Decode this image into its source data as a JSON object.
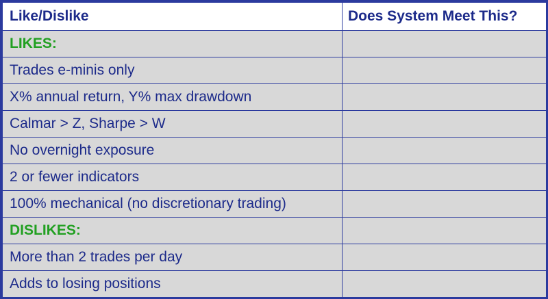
{
  "header": {
    "col1": "Like/Dislike",
    "col2": "Does System Meet This?"
  },
  "rows": [
    {
      "type": "section",
      "label": "LIKES:",
      "value": ""
    },
    {
      "type": "item",
      "label": "Trades e-minis only",
      "value": ""
    },
    {
      "type": "item",
      "label": "X% annual return, Y% max drawdown",
      "value": ""
    },
    {
      "type": "item",
      "label": "Calmar > Z, Sharpe > W",
      "value": ""
    },
    {
      "type": "item",
      "label": "No overnight exposure",
      "value": ""
    },
    {
      "type": "item",
      "label": "2 or fewer indicators",
      "value": ""
    },
    {
      "type": "item",
      "label": "100% mechanical (no discretionary trading)",
      "value": ""
    },
    {
      "type": "section",
      "label": "DISLIKES:",
      "value": ""
    },
    {
      "type": "item",
      "label": "More than 2 trades per day",
      "value": ""
    },
    {
      "type": "item",
      "label": "Adds to losing positions",
      "value": ""
    }
  ],
  "colors": {
    "border": "#2b3a9e",
    "text": "#1c2a8a",
    "section": "#22a022",
    "cell_bg": "#d8d8d8",
    "header_bg": "#ffffff"
  }
}
